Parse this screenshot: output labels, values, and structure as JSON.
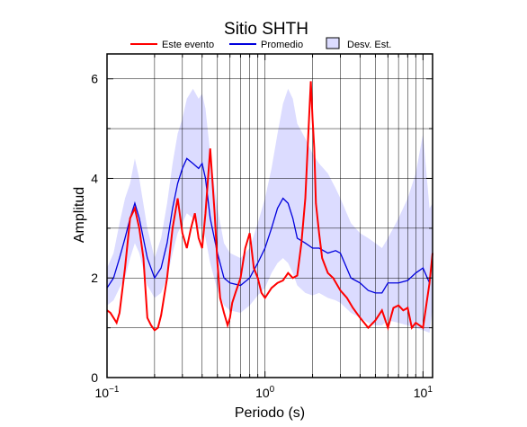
{
  "chart_data": {
    "type": "line",
    "title": "Sitio SHTH",
    "xlabel": "Periodo (s)",
    "ylabel": "Amplitud",
    "xscale": "log",
    "xlim": [
      0.1,
      11.5
    ],
    "ylim": [
      0,
      6.5
    ],
    "grid": true,
    "legend_position": "top",
    "x_ticks": [
      {
        "value": 0.1,
        "base": "10",
        "exp": "−1"
      },
      {
        "value": 1,
        "base": "10",
        "exp": "0"
      },
      {
        "value": 10,
        "base": "10",
        "exp": "1"
      }
    ],
    "y_ticks": [
      {
        "value": 0,
        "label": "0"
      },
      {
        "value": 2,
        "label": "2"
      },
      {
        "value": 4,
        "label": "4"
      },
      {
        "value": 6,
        "label": "6"
      }
    ],
    "series": [
      {
        "name": "Este evento",
        "color": "#ff0000",
        "x": [
          0.1,
          0.105,
          0.11,
          0.115,
          0.12,
          0.13,
          0.14,
          0.15,
          0.16,
          0.17,
          0.18,
          0.19,
          0.2,
          0.21,
          0.22,
          0.24,
          0.26,
          0.28,
          0.3,
          0.32,
          0.34,
          0.36,
          0.38,
          0.4,
          0.42,
          0.45,
          0.48,
          0.5,
          0.52,
          0.55,
          0.58,
          0.6,
          0.62,
          0.65,
          0.7,
          0.75,
          0.8,
          0.85,
          0.9,
          0.95,
          1.0,
          1.1,
          1.2,
          1.3,
          1.4,
          1.5,
          1.6,
          1.7,
          1.8,
          1.9,
          1.95,
          2.0,
          2.05,
          2.1,
          2.2,
          2.3,
          2.5,
          2.7,
          3.0,
          3.3,
          3.6,
          4.0,
          4.5,
          5.0,
          5.5,
          6.0,
          6.5,
          7.0,
          7.5,
          8.0,
          8.5,
          9.0,
          10.0,
          11.0,
          11.5
        ],
        "y": [
          1.35,
          1.3,
          1.2,
          1.1,
          1.3,
          2.2,
          3.2,
          3.4,
          3.0,
          2.4,
          1.2,
          1.05,
          0.95,
          1.0,
          1.25,
          2.0,
          3.0,
          3.6,
          2.9,
          2.6,
          3.0,
          3.3,
          2.8,
          2.6,
          3.3,
          4.6,
          3.3,
          2.3,
          1.6,
          1.3,
          1.05,
          1.2,
          1.5,
          1.7,
          2.0,
          2.6,
          2.9,
          2.2,
          2.0,
          1.7,
          1.6,
          1.8,
          1.9,
          1.95,
          2.1,
          2.0,
          2.05,
          2.7,
          3.6,
          5.2,
          5.95,
          5.2,
          4.6,
          3.5,
          2.9,
          2.4,
          2.1,
          2.0,
          1.75,
          1.6,
          1.4,
          1.2,
          1.0,
          1.15,
          1.35,
          1.0,
          1.4,
          1.45,
          1.35,
          1.4,
          1.0,
          1.1,
          1.0,
          1.9,
          2.5
        ]
      },
      {
        "name": "Promedio",
        "color": "#0000dd",
        "x": [
          0.1,
          0.11,
          0.12,
          0.13,
          0.14,
          0.15,
          0.16,
          0.18,
          0.2,
          0.22,
          0.24,
          0.26,
          0.28,
          0.3,
          0.32,
          0.35,
          0.38,
          0.4,
          0.42,
          0.45,
          0.5,
          0.55,
          0.6,
          0.7,
          0.8,
          0.9,
          1.0,
          1.1,
          1.2,
          1.3,
          1.4,
          1.5,
          1.6,
          1.8,
          2.0,
          2.2,
          2.5,
          2.8,
          3.0,
          3.5,
          4.0,
          4.5,
          5.0,
          5.5,
          6.0,
          7.0,
          8.0,
          9.0,
          10.0,
          11.0,
          11.5
        ],
        "y": [
          1.8,
          2.0,
          2.4,
          2.8,
          3.2,
          3.5,
          3.2,
          2.4,
          2.0,
          2.2,
          2.7,
          3.4,
          3.9,
          4.2,
          4.4,
          4.3,
          4.2,
          4.3,
          4.0,
          3.2,
          2.5,
          2.0,
          1.9,
          1.85,
          2.0,
          2.3,
          2.6,
          3.0,
          3.4,
          3.6,
          3.5,
          3.2,
          2.8,
          2.7,
          2.6,
          2.6,
          2.5,
          2.55,
          2.5,
          2.0,
          1.9,
          1.75,
          1.7,
          1.7,
          1.9,
          1.9,
          1.95,
          2.1,
          2.2,
          1.9,
          2.5
        ]
      },
      {
        "name": "Desv. Est.",
        "color": "#dcdcff",
        "x": [
          0.1,
          0.11,
          0.12,
          0.13,
          0.14,
          0.15,
          0.16,
          0.18,
          0.2,
          0.22,
          0.24,
          0.26,
          0.28,
          0.3,
          0.32,
          0.35,
          0.38,
          0.4,
          0.42,
          0.45,
          0.5,
          0.55,
          0.6,
          0.7,
          0.8,
          0.9,
          1.0,
          1.1,
          1.2,
          1.3,
          1.4,
          1.5,
          1.6,
          1.8,
          2.0,
          2.2,
          2.5,
          2.8,
          3.0,
          3.5,
          4.0,
          4.5,
          5.0,
          5.5,
          6.0,
          7.0,
          8.0,
          9.0,
          10.0,
          11.0,
          11.5
        ],
        "upper": [
          2.2,
          2.5,
          3.1,
          3.6,
          3.9,
          4.4,
          4.0,
          3.0,
          2.4,
          2.8,
          3.5,
          4.3,
          4.9,
          5.2,
          5.6,
          5.8,
          5.6,
          5.7,
          5.4,
          4.5,
          3.4,
          2.7,
          2.5,
          2.4,
          2.6,
          3.1,
          3.6,
          4.2,
          4.9,
          5.5,
          5.8,
          5.6,
          5.1,
          4.8,
          4.5,
          4.3,
          4.1,
          3.8,
          3.6,
          3.1,
          2.9,
          2.8,
          2.7,
          2.6,
          2.8,
          3.2,
          3.6,
          4.1,
          4.9,
          3.4,
          3.5
        ],
        "lower": [
          1.45,
          1.55,
          1.8,
          2.0,
          2.4,
          2.7,
          2.5,
          1.85,
          1.6,
          1.7,
          2.0,
          2.5,
          2.9,
          3.1,
          3.3,
          3.2,
          3.0,
          3.05,
          2.8,
          2.3,
          1.75,
          1.45,
          1.35,
          1.3,
          1.45,
          1.65,
          1.8,
          2.1,
          2.3,
          2.4,
          2.3,
          2.1,
          1.85,
          1.7,
          1.65,
          1.7,
          1.6,
          1.55,
          1.5,
          1.3,
          1.2,
          1.1,
          1.05,
          1.05,
          1.15,
          1.1,
          1.05,
          1.0,
          0.95,
          0.9,
          1.4
        ]
      }
    ]
  }
}
